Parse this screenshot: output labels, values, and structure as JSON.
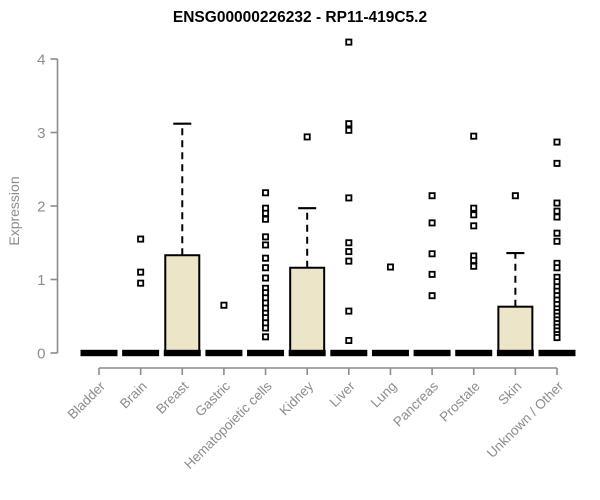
{
  "title": "ENSG00000226232 - RP11-419C5.2",
  "y_axis_title": "Expression",
  "chart_data": {
    "type": "boxplot",
    "title": "ENSG00000226232 - RP11-419C5.2",
    "ylabel": "Expression",
    "xlabel": "",
    "ylim": [
      0,
      4
    ],
    "yticks": [
      0,
      1,
      2,
      3,
      4
    ],
    "grid": false,
    "legend": "none",
    "box_fill_color": "#ece5c7",
    "axis_color": "#8c8c8c",
    "marker": "open-square",
    "categories": [
      "Bladder",
      "Brain",
      "Breast",
      "Gastric",
      "Hematopoietic cells",
      "Kidney",
      "Liver",
      "Lung",
      "Pancreas",
      "Prostate",
      "Skin",
      "Unknown / Other"
    ],
    "series": [
      {
        "category": "Bladder",
        "median": 0,
        "q1": 0,
        "q3": 0,
        "whisker_low": 0,
        "whisker_high": 0,
        "outliers": []
      },
      {
        "category": "Brain",
        "median": 0,
        "q1": 0,
        "q3": 0,
        "whisker_low": 0,
        "whisker_high": 0,
        "outliers": [
          1.55,
          1.1,
          0.95
        ]
      },
      {
        "category": "Breast",
        "median": 0,
        "q1": 0,
        "q3": 1.33,
        "whisker_low": 0,
        "whisker_high": 3.12,
        "outliers": []
      },
      {
        "category": "Gastric",
        "median": 0,
        "q1": 0,
        "q3": 0,
        "whisker_low": 0,
        "whisker_high": 0,
        "outliers": [
          0.65
        ]
      },
      {
        "category": "Hematopoietic cells",
        "median": 0,
        "q1": 0,
        "q3": 0,
        "whisker_low": 0,
        "whisker_high": 0,
        "outliers": [
          2.18,
          1.97,
          1.9,
          1.82,
          1.58,
          1.47,
          1.29,
          1.16,
          1.02,
          0.88,
          0.82,
          0.75,
          0.68,
          0.61,
          0.54,
          0.48,
          0.41,
          0.34,
          0.22
        ]
      },
      {
        "category": "Kidney",
        "median": 0,
        "q1": 0,
        "q3": 1.16,
        "whisker_low": 0,
        "whisker_high": 1.97,
        "outliers": [
          2.94
        ]
      },
      {
        "category": "Liver",
        "median": 0,
        "q1": 0,
        "q3": 0,
        "whisker_low": 0,
        "whisker_high": 0,
        "outliers": [
          4.23,
          3.12,
          3.03,
          2.11,
          1.5,
          1.38,
          1.25,
          0.57,
          0.17
        ]
      },
      {
        "category": "Lung",
        "median": 0,
        "q1": 0,
        "q3": 0,
        "whisker_low": 0,
        "whisker_high": 0,
        "outliers": [
          1.17
        ]
      },
      {
        "category": "Pancreas",
        "median": 0,
        "q1": 0,
        "q3": 0,
        "whisker_low": 0,
        "whisker_high": 0,
        "outliers": [
          2.14,
          1.77,
          1.35,
          1.07,
          0.78
        ]
      },
      {
        "category": "Prostate",
        "median": 0,
        "q1": 0,
        "q3": 0,
        "whisker_low": 0,
        "whisker_high": 0,
        "outliers": [
          2.95,
          1.97,
          1.88,
          1.73,
          1.32,
          1.26,
          1.18
        ]
      },
      {
        "category": "Skin",
        "median": 0,
        "q1": 0,
        "q3": 0.63,
        "whisker_low": 0,
        "whisker_high": 1.36,
        "outliers": [
          2.14
        ]
      },
      {
        "category": "Unknown / Other",
        "median": 0,
        "q1": 0,
        "q3": 0,
        "whisker_low": 0,
        "whisker_high": 0,
        "outliers": [
          2.87,
          2.58,
          2.04,
          1.93,
          1.85,
          1.63,
          1.52,
          1.22,
          1.16,
          1.03,
          0.97,
          0.9,
          0.84,
          0.78,
          0.72,
          0.66,
          0.6,
          0.55,
          0.5,
          0.45,
          0.4,
          0.35,
          0.3,
          0.25,
          0.21
        ]
      }
    ]
  }
}
